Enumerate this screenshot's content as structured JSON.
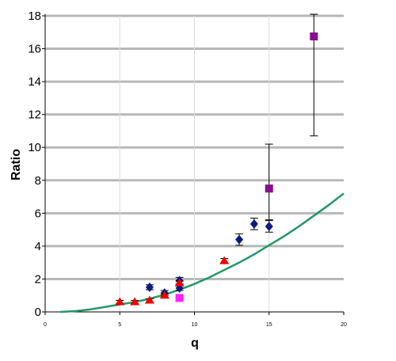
{
  "chart_data": {
    "type": "scatter",
    "title": "",
    "xlabel": "q",
    "ylabel": "Ratio",
    "xlim": [
      0,
      20
    ],
    "ylim": [
      0,
      18
    ],
    "x_ticks": [
      0,
      5,
      10,
      15,
      20
    ],
    "x_tick_labels": [
      "0",
      "5",
      "10",
      "15",
      "20"
    ],
    "y_ticks": [
      0,
      2,
      4,
      6,
      8,
      10,
      12,
      14,
      16,
      18
    ],
    "y_tick_labels": [
      "0",
      "2",
      "4",
      "6",
      "8",
      "10",
      "12",
      "14",
      "16",
      "18"
    ],
    "grid": {
      "horizontal": true,
      "vertical": true
    },
    "legend": "none",
    "series": [
      {
        "marker": "diamond",
        "color": "#0a1a80",
        "points": [
          {
            "x": 7,
            "y": 1.5,
            "err": 0.15
          },
          {
            "x": 8,
            "y": 1.15,
            "err": 0.15
          },
          {
            "x": 9,
            "y": 1.9,
            "err": 0.2
          },
          {
            "x": 9,
            "y": 1.45,
            "err": 0.15
          },
          {
            "x": 13,
            "y": 4.4,
            "err": 0.35
          },
          {
            "x": 14,
            "y": 5.35,
            "err": 0.35
          },
          {
            "x": 15,
            "y": 5.2,
            "err": 0.35
          }
        ]
      },
      {
        "marker": "triangle",
        "color": "#ee0000",
        "points": [
          {
            "x": 5,
            "y": 0.6,
            "err": 0.1
          },
          {
            "x": 6,
            "y": 0.6,
            "err": 0.1
          },
          {
            "x": 7,
            "y": 0.7,
            "err": 0.1
          },
          {
            "x": 8,
            "y": 1.0,
            "err": 0.1
          },
          {
            "x": 9,
            "y": 1.75,
            "err": 0.12
          },
          {
            "x": 12,
            "y": 3.1,
            "err": 0.15
          }
        ]
      },
      {
        "marker": "square",
        "color": "#880e8c",
        "points": [
          {
            "x": 15,
            "y": 7.5,
            "err_low": 1.9,
            "err_high": 2.7
          },
          {
            "x": 18,
            "y": 16.75,
            "err_low": 6.05,
            "err_high": 1.45
          }
        ]
      },
      {
        "marker": "square",
        "color": "#ff22ff",
        "points": [
          {
            "x": 9,
            "y": 0.85,
            "err": 0.05
          }
        ]
      },
      {
        "type": "line",
        "color": "#229966",
        "x": [
          1,
          2,
          3,
          4,
          5,
          6,
          7,
          8,
          9,
          10,
          11,
          12,
          13,
          14,
          15,
          16,
          17,
          18,
          19,
          20
        ],
        "values": [
          0.0,
          0.05,
          0.15,
          0.3,
          0.45,
          0.6,
          0.8,
          1.05,
          1.35,
          1.7,
          2.1,
          2.55,
          3.0,
          3.5,
          4.05,
          4.6,
          5.2,
          5.85,
          6.5,
          7.2
        ]
      }
    ]
  }
}
